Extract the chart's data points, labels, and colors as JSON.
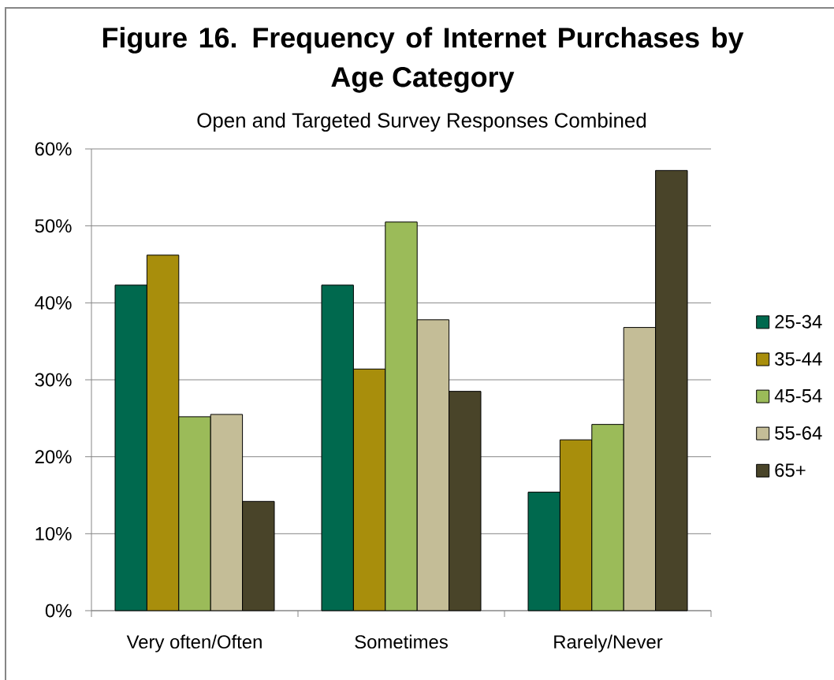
{
  "chart_data": {
    "type": "bar",
    "title": "Figure 16.  Frequency of Internet Purchases by Age Category",
    "subtitle": "Open and Targeted Survey Responses Combined",
    "categories": [
      "Very often/Often",
      "Sometimes",
      "Rarely/Never"
    ],
    "series": [
      {
        "name": "25-34",
        "color": "#00694e",
        "values": [
          42.3,
          42.3,
          15.4
        ]
      },
      {
        "name": "35-44",
        "color": "#a88e0c",
        "values": [
          46.2,
          31.4,
          22.2
        ]
      },
      {
        "name": "45-54",
        "color": "#9bbb59",
        "values": [
          25.2,
          50.5,
          24.2
        ]
      },
      {
        "name": "55-64",
        "color": "#c4bd97",
        "values": [
          25.5,
          37.8,
          36.8
        ]
      },
      {
        "name": "65+",
        "color": "#494429",
        "values": [
          14.2,
          28.5,
          57.2
        ]
      }
    ],
    "ylim": [
      0,
      60
    ],
    "yticks": [
      {
        "value": 0,
        "label": "0%"
      },
      {
        "value": 10,
        "label": "10%"
      },
      {
        "value": 20,
        "label": "20%"
      },
      {
        "value": 30,
        "label": "30%"
      },
      {
        "value": 40,
        "label": "40%"
      },
      {
        "value": 50,
        "label": "50%"
      },
      {
        "value": 60,
        "label": "60%"
      }
    ],
    "grid": "y",
    "legend": "right"
  }
}
